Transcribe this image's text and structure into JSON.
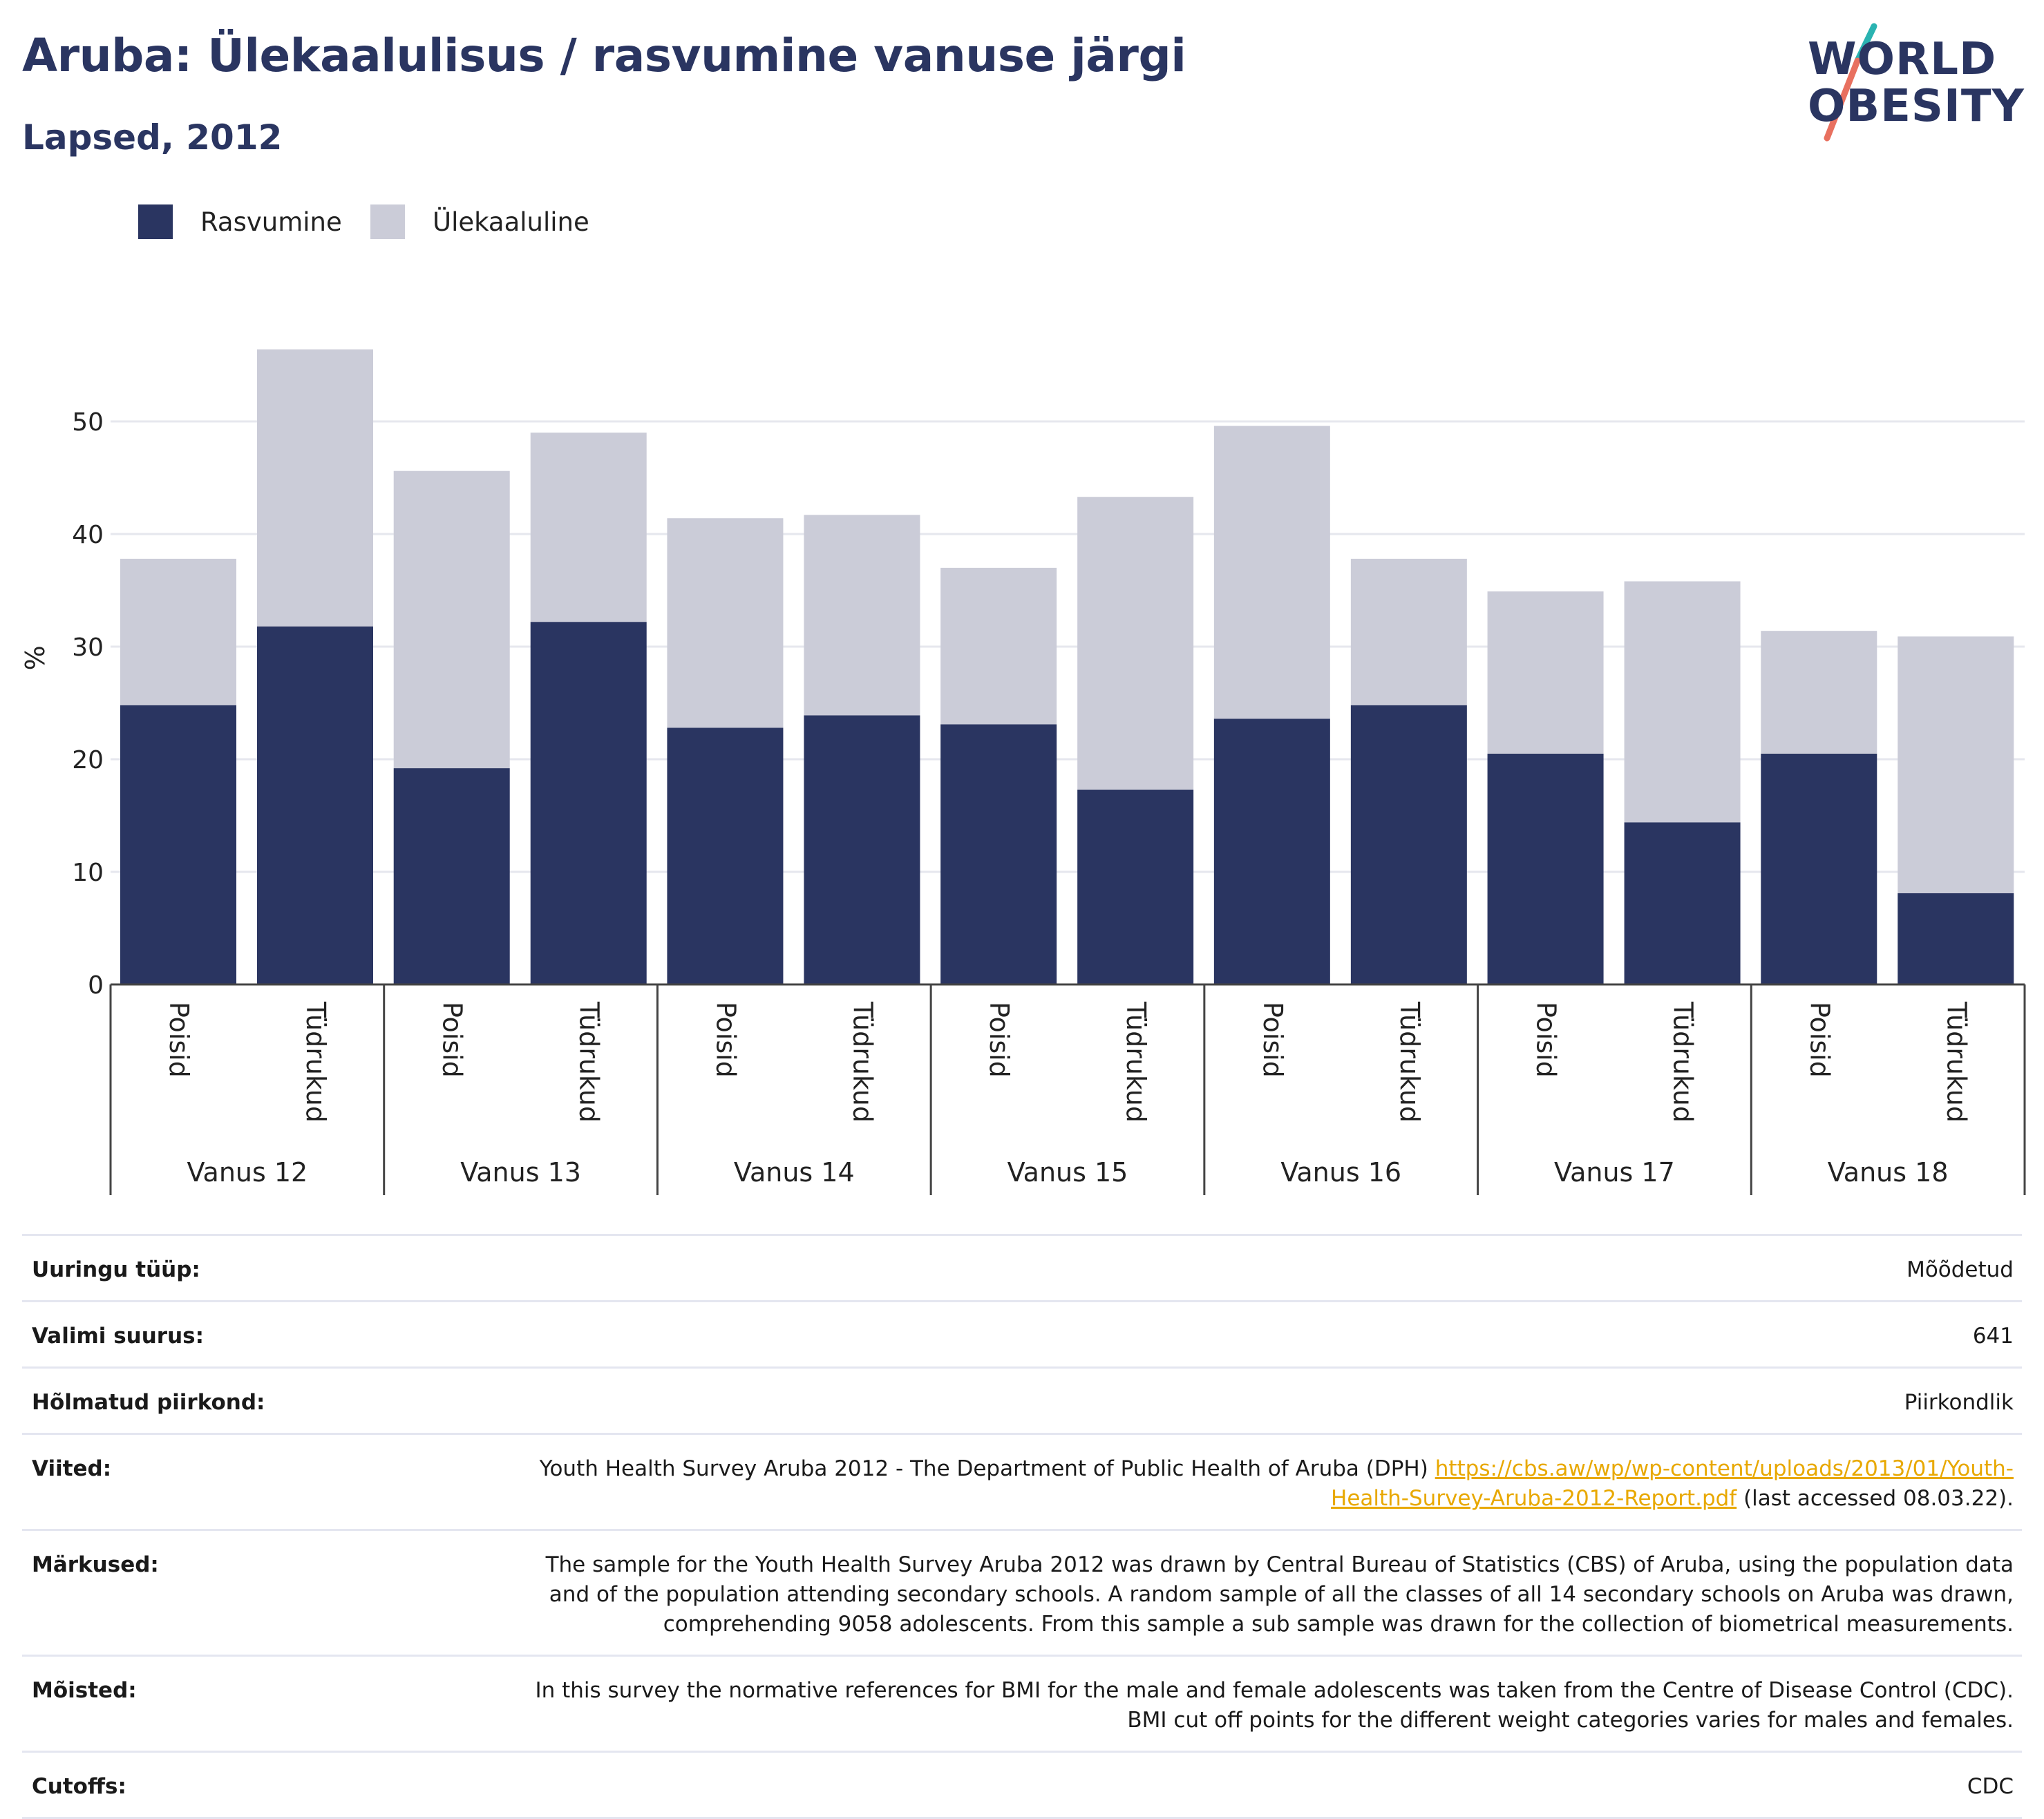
{
  "header": {
    "title": "Aruba: Ülekaalulisus / rasvumine vanuse järgi",
    "subtitle": "Lapsed, 2012"
  },
  "logo": {
    "line1": "WORLD",
    "line2": "OBESITY",
    "colors": {
      "text": "#2a3561",
      "slash_top": "#2ab3b1",
      "slash_bottom": "#e8705f"
    }
  },
  "legend": [
    {
      "label": "Rasvumine",
      "color": "#2a3561"
    },
    {
      "label": "Ülekaaluline",
      "color": "#cbccd8"
    }
  ],
  "chart_data": {
    "type": "bar",
    "stacked": true,
    "ylabel": "%",
    "ylim": [
      0,
      58
    ],
    "yticks": [
      0,
      10,
      20,
      30,
      40,
      50
    ],
    "grid": true,
    "legend_position": "top-left",
    "groups": [
      "Vanus 12",
      "Vanus 13",
      "Vanus 14",
      "Vanus 15",
      "Vanus 16",
      "Vanus 17",
      "Vanus 18"
    ],
    "subcategories": [
      "Poisid",
      "Tüdrukud"
    ],
    "series": [
      {
        "name": "Rasvumine",
        "color": "#2a3561",
        "values": [
          24.8,
          31.8,
          19.2,
          32.2,
          22.8,
          23.9,
          23.1,
          17.3,
          23.6,
          24.8,
          20.5,
          14.4,
          20.5,
          8.1
        ]
      },
      {
        "name": "Ülekaaluline",
        "color": "#cbccd8",
        "values": [
          13.0,
          24.6,
          26.4,
          16.8,
          18.6,
          17.8,
          13.9,
          26.0,
          26.0,
          13.0,
          14.4,
          21.4,
          10.9,
          22.8
        ]
      }
    ]
  },
  "info": {
    "rows": [
      {
        "label": "Uuringu tüüp:",
        "value": "Mõõdetud"
      },
      {
        "label": "Valimi suurus:",
        "value": "641"
      },
      {
        "label": "Hõlmatud piirkond:",
        "value": "Piirkondlik"
      },
      {
        "label": "Viited:",
        "value_prefix": "Youth Health Survey Aruba 2012 - The Department of Public Health of Aruba (DPH) ",
        "link": "https://cbs.aw/wp/wp-content/uploads/2013/01/Youth-Health-Survey-Aruba-2012-Report.pdf",
        "value_suffix": " (last accessed 08.03.22)."
      },
      {
        "label": "Märkused:",
        "value": "The sample for the Youth Health Survey Aruba 2012 was drawn by Central Bureau of Statistics (CBS) of Aruba, using the population data and of the population attending secondary schools. A random sample of all the classes of all 14 secondary schools on Aruba was drawn, comprehending 9058 adolescents. From this sample a sub sample was drawn for the collection of biometrical measurements."
      },
      {
        "label": "Mõisted:",
        "value": "In this survey the normative references for BMI for the male and female adolescents was taken from the Centre of Disease Control (CDC). BMI cut off points for the different weight categories varies for males and females."
      },
      {
        "label": "Cutoffs:",
        "value": "CDC"
      }
    ]
  }
}
